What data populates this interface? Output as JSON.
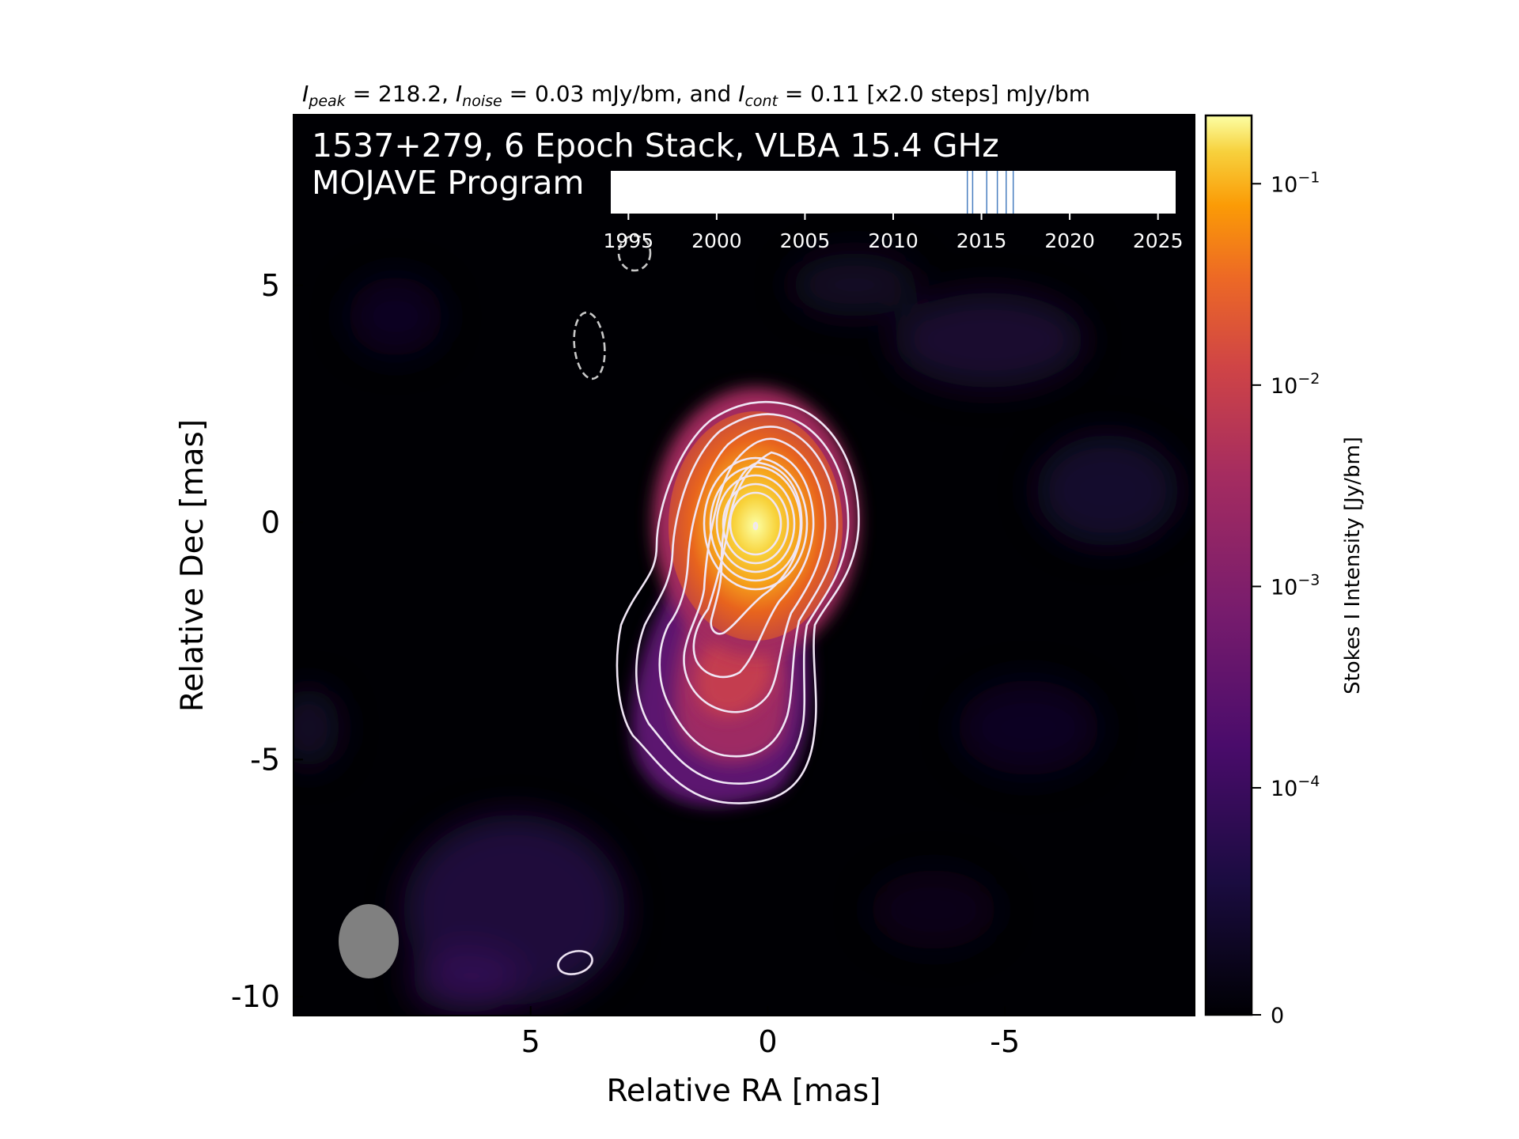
{
  "header": {
    "ipeak_sym": "I",
    "ipeak_sub": "peak",
    "ipeak_val": " = 218.2, ",
    "inoise_sym": "I",
    "inoise_sub": "noise",
    "inoise_val": " = 0.03 mJy/bm, and ",
    "icont_sym": "I",
    "icont_sub": "cont",
    "icont_val": " = 0.11 [x2.0 steps] mJy/bm"
  },
  "overlay": {
    "line1": "1537+279, 6 Epoch Stack, VLBA 15.4 GHz",
    "line2": "MOJAVE Program"
  },
  "chart_data": {
    "type": "heatmap",
    "title": "",
    "xlabel": "Relative RA [mas]",
    "ylabel": "Relative Dec [mas]",
    "xlim": [
      10.0,
      -9.0
    ],
    "ylim": [
      -10.4,
      8.6
    ],
    "x_ticks": [
      5,
      0,
      -5
    ],
    "x_tick_labels": [
      "5",
      "0",
      "-5"
    ],
    "y_ticks": [
      5,
      0,
      -5,
      -10
    ],
    "y_tick_labels": [
      "5",
      "0",
      "-5",
      "-10"
    ],
    "source": "1537+279",
    "frequency": "15.4 GHz",
    "epochs_stacked": 6,
    "peak_position_mas": [
      0.0,
      0.0
    ],
    "contour_color": "#f0e6f5",
    "colormap": "inferno",
    "colorbar": {
      "label": "Stokes I Intensity [Jy/bm]",
      "scale": "symlog",
      "range": [
        0,
        0.2182
      ],
      "ticks": [
        0,
        0.0001,
        0.001,
        0.01,
        0.1
      ],
      "tick_labels": [
        {
          "base": "0",
          "exp": ""
        },
        {
          "base": "10",
          "exp": "−4"
        },
        {
          "base": "10",
          "exp": "−3"
        },
        {
          "base": "10",
          "exp": "−2"
        },
        {
          "base": "10",
          "exp": "−1"
        }
      ]
    },
    "beam": {
      "major_mas": 1.55,
      "minor_mas": 1.25,
      "pa_deg": 0,
      "color": "#808080"
    },
    "epoch_timeline": {
      "xlim": [
        1994.0,
        2026.0
      ],
      "ticks": [
        1995,
        2000,
        2005,
        2010,
        2015,
        2020,
        2025
      ],
      "tick_labels": [
        "1995",
        "2000",
        "2005",
        "2010",
        "2015",
        "2020",
        "2025"
      ],
      "epochs": [
        2014.2,
        2014.5,
        2015.3,
        2015.9,
        2016.4,
        2016.8
      ],
      "epoch_color": "#4a7fc0"
    }
  }
}
